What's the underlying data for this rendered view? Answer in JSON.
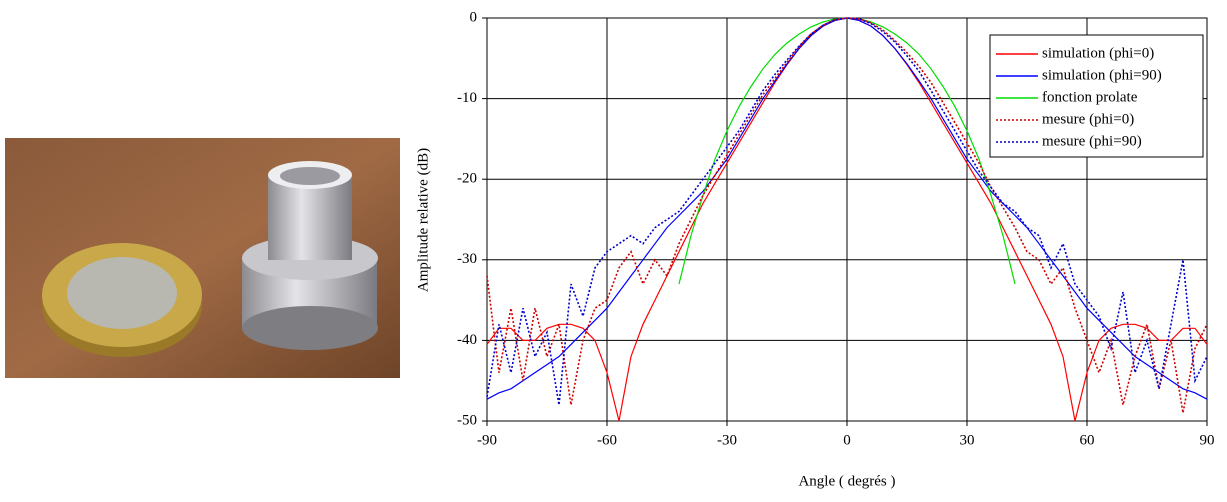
{
  "chart_data": {
    "type": "line",
    "xlabel": "Angle ( degrés )",
    "ylabel": "Amplitude relative  (dB)",
    "x": [
      -90,
      -87,
      -84,
      -81,
      -78,
      -75,
      -72,
      -69,
      -66,
      -63,
      -60,
      -57,
      -54,
      -51,
      -48,
      -45,
      -42,
      -39,
      -36,
      -33,
      -30,
      -27,
      -24,
      -21,
      -18,
      -15,
      -12,
      -9,
      -6,
      -3,
      0,
      3,
      6,
      9,
      12,
      15,
      18,
      21,
      24,
      27,
      30,
      33,
      36,
      39,
      42,
      45,
      48,
      51,
      54,
      57,
      60,
      63,
      66,
      69,
      72,
      75,
      78,
      81,
      84,
      87,
      90
    ],
    "xlim": [
      -90,
      90
    ],
    "xticks": [
      -90,
      -60,
      -30,
      0,
      30,
      60,
      90
    ],
    "ylim": [
      -50,
      0
    ],
    "yticks": [
      -50,
      -40,
      -30,
      -20,
      -10,
      0
    ],
    "grid": true,
    "legend": "upper right",
    "series": [
      {
        "name": "simulation (phi=0)",
        "color": "#ff0000",
        "style": "solid",
        "values": [
          -40.5,
          -38.5,
          -38.5,
          -40,
          -40,
          -38.5,
          -38,
          -38,
          -38.5,
          -40,
          -44,
          -50,
          -42,
          -38,
          -35,
          -32,
          -29,
          -26,
          -23,
          -20.5,
          -18,
          -15.5,
          -13,
          -10.5,
          -8,
          -5.8,
          -3.8,
          -2.2,
          -1,
          -0.3,
          0,
          -0.3,
          -1,
          -2.2,
          -3.8,
          -5.8,
          -8,
          -10.5,
          -13,
          -15.5,
          -18,
          -20.5,
          -23,
          -26,
          -29,
          -32,
          -35,
          -38,
          -42,
          -50,
          -44,
          -40,
          -38.5,
          -38,
          -38,
          -38.5,
          -40,
          -40,
          -38.5,
          -38.5,
          -40.5
        ]
      },
      {
        "name": "simulation (phi=90)",
        "color": "#0000ff",
        "style": "solid",
        "values": [
          -47.3,
          -46.5,
          -46,
          -45,
          -44,
          -43,
          -42,
          -40.5,
          -39,
          -37.5,
          -36,
          -34,
          -32,
          -30,
          -28,
          -26,
          -24.5,
          -23,
          -21.5,
          -19.5,
          -17.5,
          -15,
          -12.5,
          -10,
          -7.8,
          -5.7,
          -3.8,
          -2.2,
          -1,
          -0.3,
          0,
          -0.3,
          -1,
          -2.2,
          -3.8,
          -5.7,
          -7.8,
          -10,
          -12.5,
          -15,
          -17.5,
          -19.5,
          -21.5,
          -23,
          -24.5,
          -26,
          -28,
          -30,
          -32,
          -34,
          -36,
          -37.5,
          -39,
          -40.5,
          -42,
          -43,
          -44,
          -45,
          -46,
          -46.5,
          -47.3
        ]
      },
      {
        "name": "fonction prolate",
        "color": "#00dd00",
        "style": "solid",
        "values": [
          null,
          null,
          null,
          null,
          null,
          null,
          null,
          null,
          null,
          null,
          null,
          null,
          null,
          null,
          null,
          null,
          -33,
          -27,
          -22,
          -17.5,
          -14,
          -11,
          -8.5,
          -6.3,
          -4.5,
          -3.1,
          -2,
          -1.1,
          -0.5,
          -0.1,
          0,
          -0.1,
          -0.5,
          -1.1,
          -2,
          -3.1,
          -4.5,
          -6.3,
          -8.5,
          -11,
          -14,
          -17.5,
          -22,
          -27,
          -33,
          null,
          null,
          null,
          null,
          null,
          null,
          null,
          null,
          null,
          null,
          null,
          null,
          null,
          null,
          null,
          null
        ]
      },
      {
        "name": "mesure (phi=0)",
        "color": "#cc0000",
        "style": "dotted",
        "values": [
          -32,
          -44,
          -36,
          -45,
          -36,
          -42,
          -38,
          -48,
          -40,
          -36,
          -35,
          -31,
          -29,
          -33,
          -30,
          -32,
          -28,
          -25,
          -22,
          -19.5,
          -17,
          -14.5,
          -12,
          -9.5,
          -7.5,
          -5.5,
          -3.6,
          -2,
          -0.9,
          -0.2,
          0,
          -0.1,
          -0.6,
          -1.5,
          -2.8,
          -4.3,
          -6,
          -8,
          -10.5,
          -13,
          -15.5,
          -18,
          -21,
          -23.5,
          -26,
          -29,
          -30,
          -33,
          -31,
          -36,
          -40,
          -44,
          -40,
          -48,
          -42,
          -38,
          -46,
          -40,
          -49,
          -41,
          -38
        ]
      },
      {
        "name": "mesure (phi=90)",
        "color": "#0000cc",
        "style": "dotted",
        "values": [
          -47,
          -38,
          -44,
          -36,
          -42,
          -39,
          -48,
          -33,
          -37,
          -31,
          -29,
          -28,
          -27,
          -28,
          -26,
          -25,
          -24,
          -22,
          -20,
          -18,
          -16,
          -14,
          -11.5,
          -9,
          -7,
          -5.2,
          -3.5,
          -2,
          -0.9,
          -0.2,
          0,
          -0.1,
          -0.7,
          -1.7,
          -3,
          -4.7,
          -6.6,
          -9,
          -11.5,
          -14,
          -16.5,
          -19,
          -21,
          -23,
          -24,
          -26,
          -27,
          -31,
          -28,
          -33,
          -35,
          -37,
          -41,
          -34,
          -44,
          -40,
          -46,
          -38,
          -30,
          -45,
          -42
        ]
      }
    ]
  }
}
